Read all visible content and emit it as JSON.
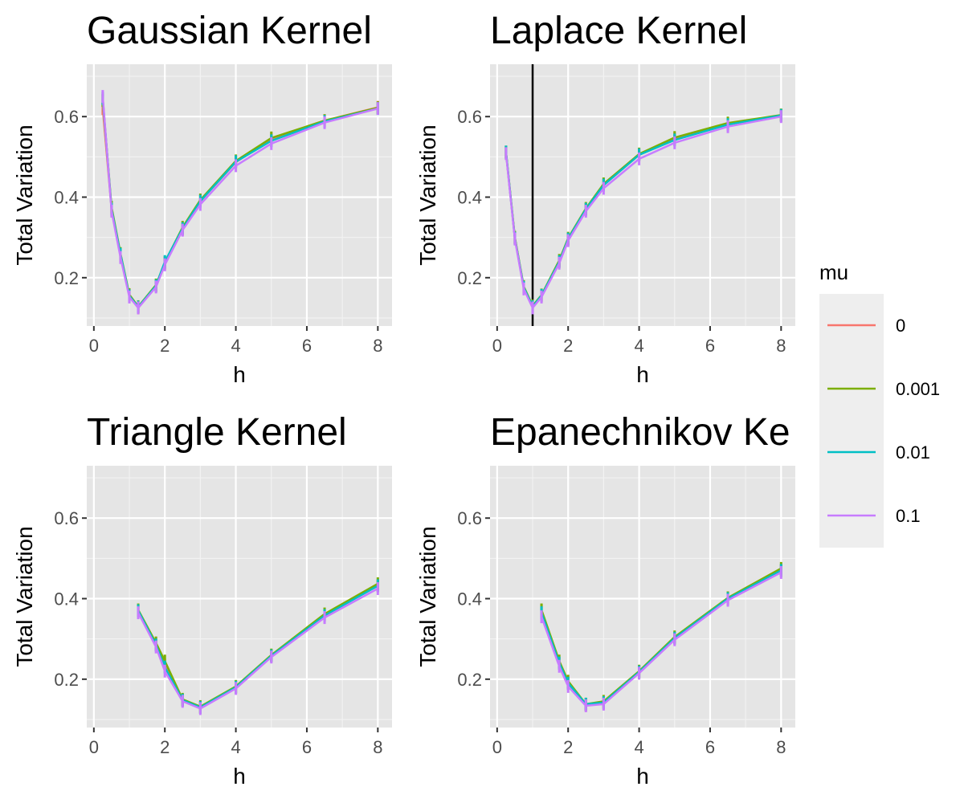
{
  "colors": {
    "panel_bg": "#e5e5e5",
    "grid_major": "#ffffff",
    "grid_minor": "#f2f2f2",
    "tick_text": "#4d4d4d",
    "vline": "#000000",
    "legend_bg": "#eeeeee"
  },
  "legend": {
    "title": "mu",
    "position": "right",
    "entries": [
      {
        "label": "0",
        "color": "#F8766D"
      },
      {
        "label": "0.001",
        "color": "#7CAE00"
      },
      {
        "label": "0.01",
        "color": "#00BFC4"
      },
      {
        "label": "0.1",
        "color": "#C77CFF"
      }
    ]
  },
  "chart_data": [
    {
      "type": "line",
      "title": "Gaussian Kernel",
      "xlabel": "h",
      "ylabel": "Total Variation",
      "xlim": [
        -0.2,
        8.4
      ],
      "ylim": [
        0.08,
        0.73
      ],
      "xticks": [
        "0",
        "2",
        "4",
        "6",
        "8"
      ],
      "yticks": [
        "0.2",
        "0.4",
        "0.6"
      ],
      "grid": true,
      "x": [
        0.25,
        0.5,
        0.75,
        1.0,
        1.25,
        1.75,
        2.0,
        2.5,
        3.0,
        4.0,
        5.0,
        6.5,
        8.0
      ],
      "series": [
        {
          "name": "0",
          "color": "#F8766D",
          "values": [
            0.62,
            0.37,
            0.255,
            0.155,
            0.125,
            0.18,
            0.235,
            0.32,
            0.39,
            0.487,
            0.545,
            0.59,
            0.623
          ]
        },
        {
          "name": "0.001",
          "color": "#7CAE00",
          "values": [
            0.64,
            0.375,
            0.26,
            0.158,
            0.128,
            0.182,
            0.238,
            0.325,
            0.393,
            0.49,
            0.547,
            0.59,
            0.622
          ]
        },
        {
          "name": "0.01",
          "color": "#00BFC4",
          "values": [
            0.645,
            0.37,
            0.258,
            0.155,
            0.127,
            0.18,
            0.24,
            0.322,
            0.39,
            0.488,
            0.54,
            0.588,
            0.62
          ]
        },
        {
          "name": "0.1",
          "color": "#C77CFF",
          "values": [
            0.65,
            0.365,
            0.25,
            0.152,
            0.125,
            0.177,
            0.232,
            0.318,
            0.382,
            0.478,
            0.533,
            0.585,
            0.62
          ]
        }
      ]
    },
    {
      "type": "line",
      "title": "Laplace Kernel",
      "xlabel": "h",
      "ylabel": "Total Variation",
      "xlim": [
        -0.2,
        8.4
      ],
      "ylim": [
        0.08,
        0.73
      ],
      "xticks": [
        "0",
        "2",
        "4",
        "6",
        "8"
      ],
      "yticks": [
        "0.2",
        "0.4",
        "0.6"
      ],
      "grid": true,
      "vline": 1.0,
      "x": [
        0.25,
        0.5,
        0.75,
        1.0,
        1.25,
        1.75,
        2.0,
        2.5,
        3.0,
        4.0,
        5.0,
        6.5,
        8.0
      ],
      "series": [
        {
          "name": "0",
          "color": "#F8766D",
          "values": [
            0.51,
            0.3,
            0.175,
            0.128,
            0.155,
            0.24,
            0.295,
            0.37,
            0.43,
            0.505,
            0.545,
            0.582,
            0.603
          ]
        },
        {
          "name": "0.001",
          "color": "#7CAE00",
          "values": [
            0.512,
            0.3,
            0.178,
            0.13,
            0.157,
            0.243,
            0.298,
            0.372,
            0.433,
            0.507,
            0.548,
            0.584,
            0.604
          ]
        },
        {
          "name": "0.01",
          "color": "#00BFC4",
          "values": [
            0.512,
            0.298,
            0.176,
            0.128,
            0.156,
            0.24,
            0.296,
            0.37,
            0.43,
            0.505,
            0.542,
            0.58,
            0.603
          ]
        },
        {
          "name": "0.1",
          "color": "#C77CFF",
          "values": [
            0.508,
            0.296,
            0.172,
            0.125,
            0.152,
            0.236,
            0.292,
            0.365,
            0.422,
            0.495,
            0.535,
            0.575,
            0.6
          ]
        }
      ]
    },
    {
      "type": "line",
      "title": "Triangle Kernel",
      "xlabel": "h",
      "ylabel": "Total Variation",
      "xlim": [
        -0.2,
        8.4
      ],
      "ylim": [
        0.08,
        0.73
      ],
      "xticks": [
        "0",
        "2",
        "4",
        "6",
        "8"
      ],
      "yticks": [
        "0.2",
        "0.4",
        "0.6"
      ],
      "grid": true,
      "x": [
        1.25,
        1.75,
        2.0,
        2.5,
        3.0,
        4.0,
        5.0,
        6.5,
        8.0
      ],
      "series": [
        {
          "name": "0",
          "color": "#F8766D",
          "values": [
            0.37,
            0.285,
            0.235,
            0.148,
            0.13,
            0.18,
            0.258,
            0.36,
            0.432
          ]
        },
        {
          "name": "0.001",
          "color": "#7CAE00",
          "values": [
            0.372,
            0.29,
            0.245,
            0.15,
            0.132,
            0.182,
            0.26,
            0.362,
            0.437
          ]
        },
        {
          "name": "0.01",
          "color": "#00BFC4",
          "values": [
            0.37,
            0.285,
            0.23,
            0.148,
            0.13,
            0.18,
            0.258,
            0.358,
            0.432
          ]
        },
        {
          "name": "0.1",
          "color": "#C77CFF",
          "values": [
            0.365,
            0.28,
            0.22,
            0.145,
            0.127,
            0.177,
            0.255,
            0.353,
            0.425
          ]
        }
      ]
    },
    {
      "type": "line",
      "title": "Epanechnikov Ke",
      "xlabel": "h",
      "ylabel": "Total Variation",
      "xlim": [
        -0.2,
        8.4
      ],
      "ylim": [
        0.08,
        0.73
      ],
      "xticks": [
        "0",
        "2",
        "4",
        "6",
        "8"
      ],
      "yticks": [
        "0.2",
        "0.4",
        "0.6"
      ],
      "grid": true,
      "x": [
        1.25,
        1.75,
        2.0,
        2.5,
        3.0,
        4.0,
        5.0,
        6.5,
        8.0
      ],
      "series": [
        {
          "name": "0",
          "color": "#F8766D",
          "values": [
            0.37,
            0.24,
            0.19,
            0.135,
            0.14,
            0.218,
            0.302,
            0.4,
            0.47
          ]
        },
        {
          "name": "0.001",
          "color": "#7CAE00",
          "values": [
            0.372,
            0.245,
            0.195,
            0.138,
            0.145,
            0.22,
            0.305,
            0.402,
            0.475
          ]
        },
        {
          "name": "0.01",
          "color": "#00BFC4",
          "values": [
            0.365,
            0.24,
            0.19,
            0.138,
            0.142,
            0.218,
            0.302,
            0.4,
            0.47
          ]
        },
        {
          "name": "0.1",
          "color": "#C77CFF",
          "values": [
            0.355,
            0.232,
            0.182,
            0.134,
            0.138,
            0.215,
            0.298,
            0.396,
            0.465
          ]
        }
      ]
    }
  ]
}
